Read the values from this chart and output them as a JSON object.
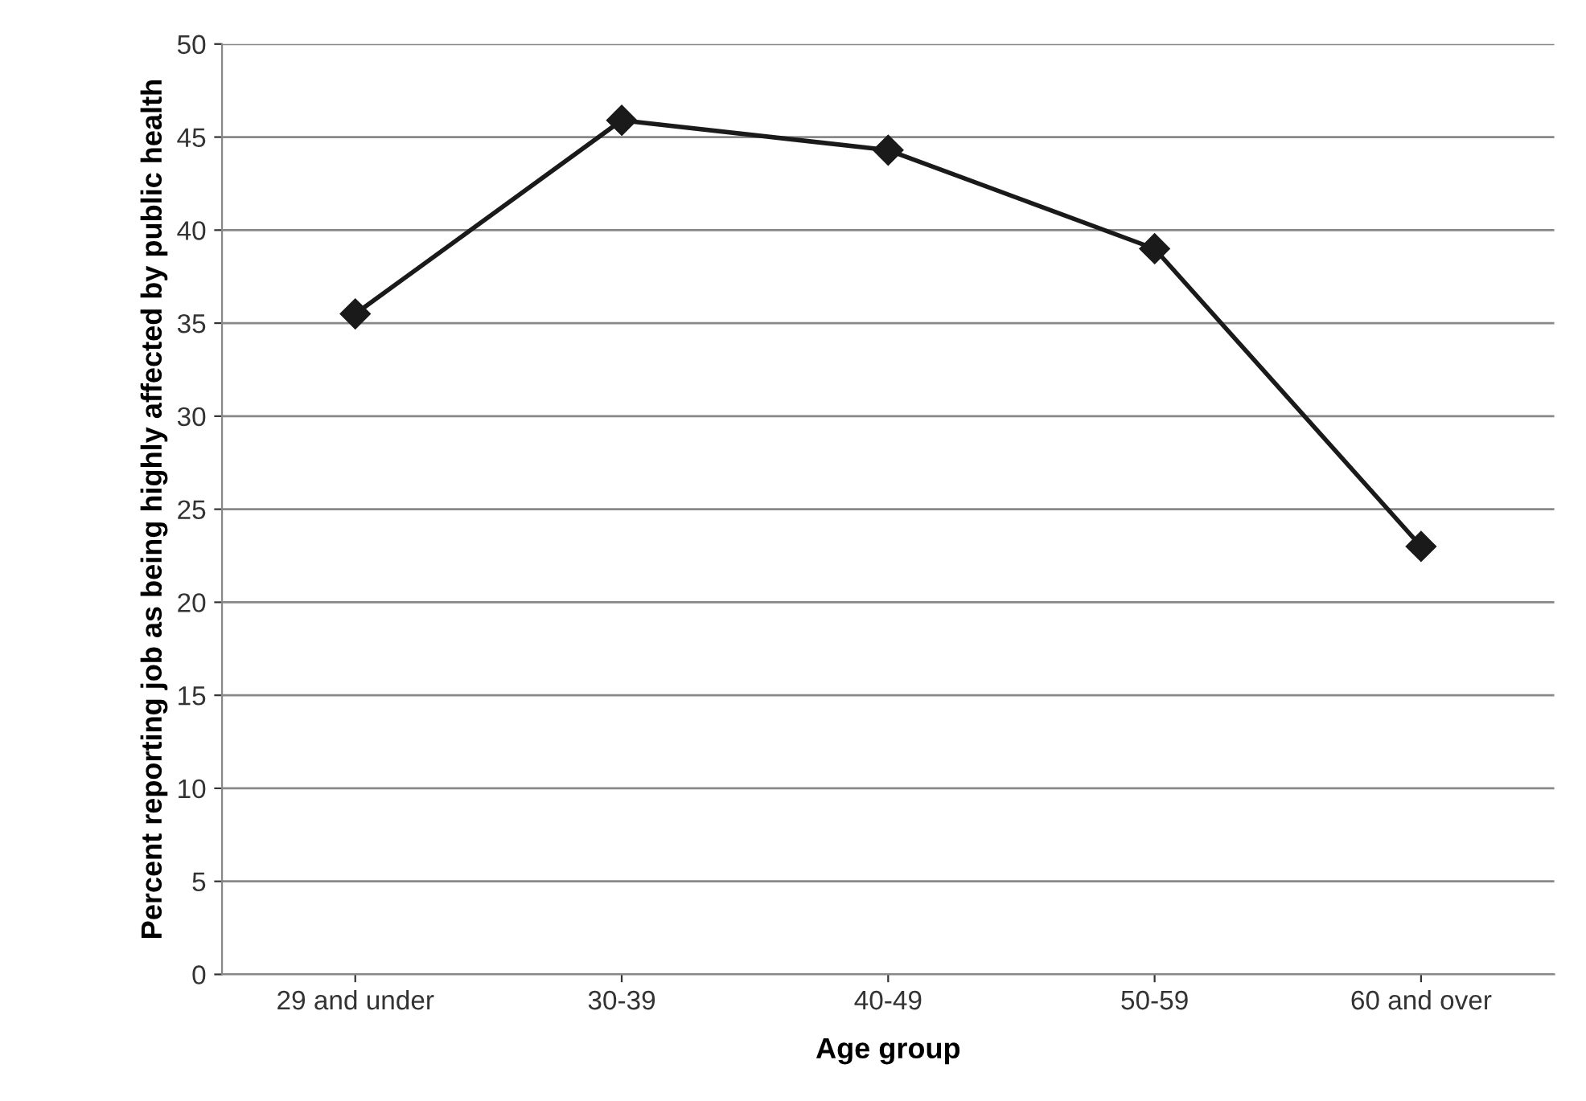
{
  "chart_data": {
    "type": "line",
    "xlabel": "Age group",
    "ylabel": "Percent reporting job as being highly affected by public health",
    "categories": [
      "29 and under",
      "30-39",
      "40-49",
      "50-59",
      "60 and over"
    ],
    "series": [
      {
        "color": "#1a1a1a",
        "values": [
          35.5,
          45.9,
          44.3,
          39.0,
          23.0
        ]
      }
    ],
    "ylim": [
      0,
      50
    ],
    "yticks": [
      0,
      5,
      10,
      15,
      20,
      25,
      30,
      35,
      40,
      45,
      50
    ],
    "grid": "y",
    "marker": "diamond",
    "line_style": "solid"
  }
}
